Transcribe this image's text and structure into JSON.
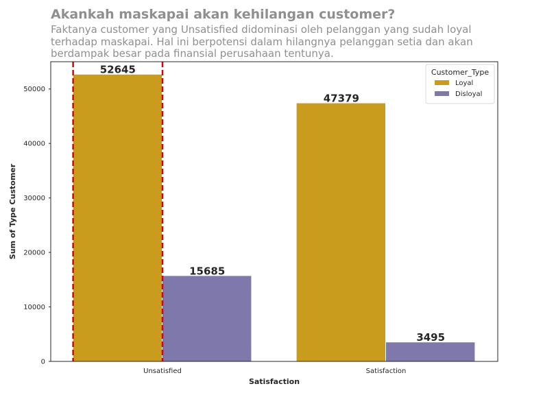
{
  "title": "Akankah maskapai akan kehilangan customer?",
  "subtitle_lines": [
    "Faktanya customer yang Unsatisfied didominasi oleh pelanggan yang sudah loyal",
    "terhadap maskapai. Hal ini berpotensi dalam hilangnya pelanggan setia dan akan",
    "berdampak besar pada finansial perusahaan tentunya."
  ],
  "chart_data": {
    "type": "bar",
    "categories": [
      "Unsatisfied",
      "Satisfaction"
    ],
    "series": [
      {
        "name": "Loyal",
        "values": [
          52645,
          47379
        ],
        "color": "#c99c1e"
      },
      {
        "name": "Disloyal",
        "values": [
          15685,
          3495
        ],
        "color": "#7e78ab"
      }
    ],
    "xlabel": "Satisfaction",
    "ylabel": "Sum of Type Customer",
    "ylim": [
      0,
      55000
    ],
    "yticks": [
      0,
      10000,
      20000,
      30000,
      40000,
      50000
    ],
    "grid": false,
    "legend": {
      "title": "Customer_Type",
      "placement": "top-right"
    },
    "highlight": {
      "category": "Unsatisfied",
      "style": "red dashed vertical lines",
      "color": "#e00000"
    }
  }
}
